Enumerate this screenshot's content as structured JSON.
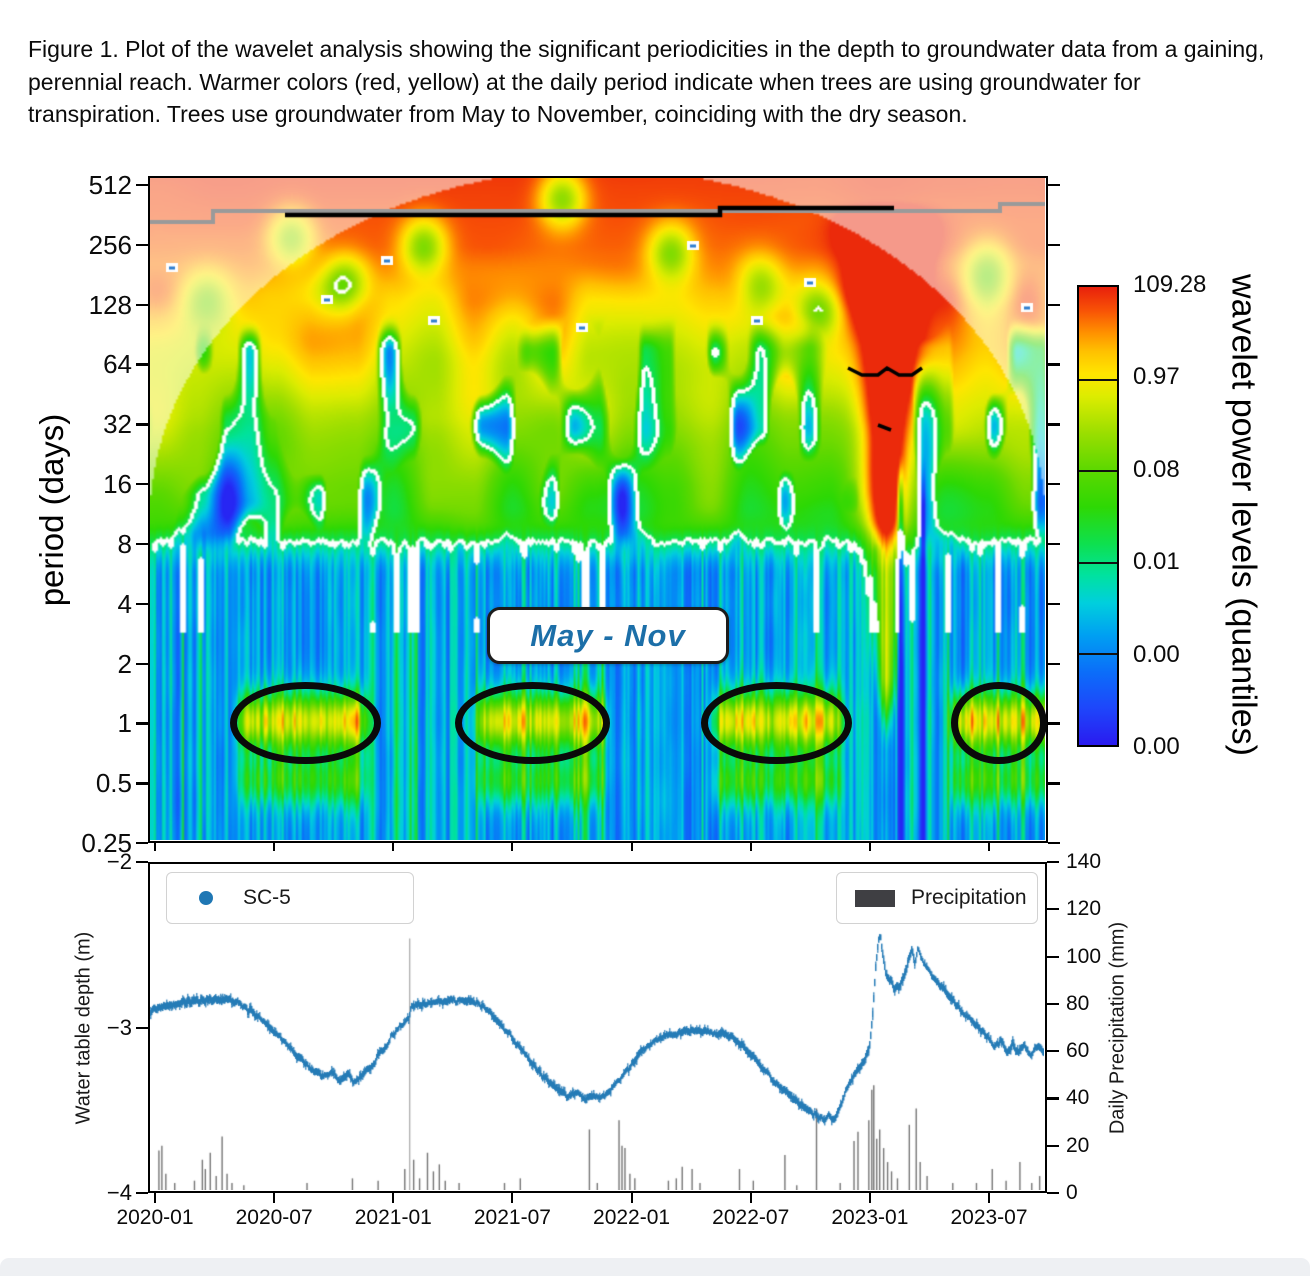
{
  "caption": "Figure 1. Plot of the wavelet analysis showing the significant periodicities in the depth to groundwater data from a gaining, perennial reach. Warmer colors (red, yellow) at the daily period indicate when trees are using groundwater for transpiration. Trees use groundwater from May to November, coinciding with the dry season.",
  "wavelet_plot": {
    "ylabel": "period (days)",
    "ytick_labels": [
      "512",
      "256",
      "128",
      "64",
      "32",
      "16",
      "8",
      "4",
      "2",
      "1",
      "0.5",
      "0.25"
    ],
    "annotation_label": "May - Nov"
  },
  "colorbar": {
    "label": "wavelet power levels (quantiles)",
    "tick_labels": [
      "109.28",
      "0.97",
      "0.08",
      "0.01",
      "0.00",
      "0.00"
    ],
    "gradient": [
      [
        0,
        "#2a1bf0"
      ],
      [
        8,
        "#1e46fb"
      ],
      [
        16,
        "#0b6ef9"
      ],
      [
        24,
        "#00a0f2"
      ],
      [
        31,
        "#00cfdd"
      ],
      [
        37,
        "#00e2a0"
      ],
      [
        44,
        "#0ee04e"
      ],
      [
        52,
        "#2ed804"
      ],
      [
        60,
        "#5cd800"
      ],
      [
        68,
        "#9ade00"
      ],
      [
        76,
        "#dcec00"
      ],
      [
        81,
        "#ffe600"
      ],
      [
        86,
        "#ffc000"
      ],
      [
        90,
        "#ff9100"
      ],
      [
        95,
        "#f85106"
      ],
      [
        100,
        "#e8200c"
      ]
    ]
  },
  "timeseries_plot": {
    "ylabel_left": "Water table depth (m)",
    "ytick_labels_left": [
      "−2",
      "−3",
      "−4"
    ],
    "ylabel_right": "Daily Precipitation (mm)",
    "ytick_labels_right": [
      "140",
      "120",
      "100",
      "80",
      "60",
      "40",
      "20",
      "0"
    ],
    "xtick_labels": [
      "2020-01",
      "2020-07",
      "2021-01",
      "2021-07",
      "2022-01",
      "2022-07",
      "2023-01",
      "2023-07"
    ],
    "legend_series": "SC-5",
    "legend_bars": "Precipitation",
    "series_color": "#1f77b4",
    "bar_color": "#6e6e6e"
  },
  "chart_data": [
    {
      "type": "heatmap",
      "title": "wavelet power spectrum of depth-to-groundwater data",
      "x_range": [
        "2020-01",
        "2023-09"
      ],
      "x_unit": "months since 2020-01",
      "y_axis": {
        "label": "period (days)",
        "scale": "log2",
        "min": 0.25,
        "max": 512
      },
      "colorbar_levels_quantiles": [
        0.0,
        0.0,
        0.01,
        0.08,
        0.97,
        109.28
      ],
      "xtick_months": [
        0,
        6,
        12,
        18,
        24,
        30,
        36,
        42
      ],
      "ytick_periods": [
        512,
        256,
        128,
        64,
        32,
        16,
        8,
        4,
        2,
        1,
        0.5,
        0.25
      ],
      "daily_period_high_power_windows_months": [
        [
          4,
          10.7
        ],
        [
          16,
          22.7
        ],
        [
          28,
          34.7
        ],
        [
          40,
          44.9
        ]
      ],
      "ellipses_months": [
        [
          3.8,
          11.4
        ],
        [
          15.1,
          22.9
        ],
        [
          27.5,
          35.1
        ],
        [
          40.1,
          44.9
        ]
      ],
      "ellipse_period_days": 1,
      "annual_significance_line_period_days": 365,
      "high_power_plume_month": 36.9,
      "cone_of_influence": true
    },
    {
      "type": "line+bar",
      "x_unit": "months since 2020-01",
      "x_left_edge_month": -0.352,
      "x_right_edge_month": 44.92,
      "water_table_depth_m": [
        [
          -0.35,
          -2.9
        ],
        [
          0,
          -2.88
        ],
        [
          0.6,
          -2.86
        ],
        [
          1.2,
          -2.85
        ],
        [
          2,
          -2.84
        ],
        [
          2.8,
          -2.83
        ],
        [
          3.6,
          -2.84
        ],
        [
          4.2,
          -2.86
        ],
        [
          5,
          -2.93
        ],
        [
          6,
          -3.04
        ],
        [
          7,
          -3.17
        ],
        [
          7.8,
          -3.26
        ],
        [
          8.4,
          -3.3
        ],
        [
          8.8,
          -3.27
        ],
        [
          9.2,
          -3.33
        ],
        [
          9.6,
          -3.29
        ],
        [
          10,
          -3.34
        ],
        [
          10.4,
          -3.28
        ],
        [
          10.8,
          -3.24
        ],
        [
          11.3,
          -3.16
        ],
        [
          11.8,
          -3.07
        ],
        [
          12.3,
          -2.99
        ],
        [
          12.75,
          -2.94
        ],
        [
          12.85,
          -2.87
        ],
        [
          13.3,
          -2.86
        ],
        [
          14,
          -2.85
        ],
        [
          15,
          -2.84
        ],
        [
          15.8,
          -2.84
        ],
        [
          16.3,
          -2.86
        ],
        [
          17,
          -2.93
        ],
        [
          17.8,
          -3.04
        ],
        [
          18.6,
          -3.17
        ],
        [
          19.4,
          -3.29
        ],
        [
          20.2,
          -3.38
        ],
        [
          20.8,
          -3.43
        ],
        [
          21.2,
          -3.4
        ],
        [
          21.6,
          -3.45
        ],
        [
          22,
          -3.42
        ],
        [
          22.4,
          -3.45
        ],
        [
          22.8,
          -3.4
        ],
        [
          23.2,
          -3.35
        ],
        [
          23.7,
          -3.28
        ],
        [
          24.3,
          -3.18
        ],
        [
          25,
          -3.1
        ],
        [
          25.7,
          -3.05
        ],
        [
          26.5,
          -3.03
        ],
        [
          27.3,
          -3.02
        ],
        [
          28.2,
          -3.03
        ],
        [
          29,
          -3.06
        ],
        [
          29.7,
          -3.12
        ],
        [
          30.4,
          -3.22
        ],
        [
          31.1,
          -3.32
        ],
        [
          31.8,
          -3.4
        ],
        [
          32.5,
          -3.47
        ],
        [
          33.2,
          -3.53
        ],
        [
          33.7,
          -3.57
        ],
        [
          34,
          -3.54
        ],
        [
          34.3,
          -3.58
        ],
        [
          34.6,
          -3.48
        ],
        [
          34.9,
          -3.38
        ],
        [
          35.2,
          -3.32
        ],
        [
          35.5,
          -3.26
        ],
        [
          35.8,
          -3.2
        ],
        [
          36.05,
          -3.12
        ],
        [
          36.2,
          -2.95
        ],
        [
          36.35,
          -2.65
        ],
        [
          36.5,
          -2.46
        ],
        [
          36.6,
          -2.43
        ],
        [
          36.7,
          -2.55
        ],
        [
          36.85,
          -2.65
        ],
        [
          37.1,
          -2.72
        ],
        [
          37.35,
          -2.76
        ],
        [
          37.6,
          -2.74
        ],
        [
          37.85,
          -2.67
        ],
        [
          38.05,
          -2.58
        ],
        [
          38.2,
          -2.54
        ],
        [
          38.35,
          -2.6
        ],
        [
          38.5,
          -2.52
        ],
        [
          38.7,
          -2.58
        ],
        [
          38.9,
          -2.63
        ],
        [
          39.2,
          -2.68
        ],
        [
          39.6,
          -2.74
        ],
        [
          40,
          -2.8
        ],
        [
          40.5,
          -2.87
        ],
        [
          41,
          -2.94
        ],
        [
          41.5,
          -3.0
        ],
        [
          42,
          -3.06
        ],
        [
          42.4,
          -3.12
        ],
        [
          42.7,
          -3.08
        ],
        [
          43,
          -3.15
        ],
        [
          43.3,
          -3.1
        ],
        [
          43.6,
          -3.16
        ],
        [
          43.9,
          -3.12
        ],
        [
          44.2,
          -3.17
        ],
        [
          44.5,
          -3.12
        ],
        [
          44.9,
          -3.15
        ]
      ],
      "precipitation_mm": [
        [
          0.1,
          17
        ],
        [
          0.25,
          19
        ],
        [
          0.45,
          7
        ],
        [
          0.9,
          3
        ],
        [
          1.9,
          4
        ],
        [
          2.3,
          13
        ],
        [
          2.45,
          9
        ],
        [
          2.7,
          16
        ],
        [
          3.0,
          6
        ],
        [
          3.3,
          23
        ],
        [
          3.55,
          7
        ],
        [
          3.8,
          3
        ],
        [
          4.4,
          2
        ],
        [
          7.6,
          3
        ],
        [
          9.9,
          5
        ],
        [
          11.2,
          4
        ],
        [
          12.55,
          9
        ],
        [
          12.8,
          108
        ],
        [
          13.0,
          13
        ],
        [
          13.3,
          5
        ],
        [
          13.7,
          16
        ],
        [
          14.0,
          8
        ],
        [
          14.3,
          11
        ],
        [
          14.6,
          4
        ],
        [
          15.3,
          3
        ],
        [
          17.6,
          3
        ],
        [
          18.4,
          5
        ],
        [
          21.9,
          26
        ],
        [
          22.3,
          3
        ],
        [
          23.4,
          30
        ],
        [
          23.55,
          19
        ],
        [
          23.7,
          18
        ],
        [
          23.95,
          7
        ],
        [
          24.2,
          5
        ],
        [
          25.9,
          4
        ],
        [
          26.3,
          5
        ],
        [
          26.6,
          10
        ],
        [
          27.1,
          9
        ],
        [
          27.5,
          3
        ],
        [
          29.5,
          9
        ],
        [
          30.2,
          4
        ],
        [
          31.8,
          15
        ],
        [
          32.4,
          2
        ],
        [
          33.4,
          35
        ],
        [
          34.6,
          3
        ],
        [
          35.3,
          21
        ],
        [
          35.5,
          25
        ],
        [
          36.05,
          30
        ],
        [
          36.2,
          43
        ],
        [
          36.3,
          45
        ],
        [
          36.45,
          22
        ],
        [
          36.6,
          26
        ],
        [
          36.8,
          18
        ],
        [
          37.0,
          12
        ],
        [
          37.2,
          8
        ],
        [
          37.5,
          5
        ],
        [
          38.1,
          28
        ],
        [
          38.45,
          35
        ],
        [
          38.65,
          12
        ],
        [
          39.0,
          6
        ],
        [
          40.3,
          3
        ],
        [
          41.5,
          3
        ],
        [
          42.3,
          9
        ],
        [
          43.0,
          4
        ],
        [
          43.7,
          12
        ],
        [
          44.3,
          3
        ],
        [
          44.7,
          6
        ]
      ],
      "left_axis": {
        "label": "Water table depth (m)",
        "min": -4,
        "max": -2
      },
      "right_axis": {
        "label": "Daily Precipitation (mm)",
        "min": 0,
        "max": 140
      }
    }
  ]
}
